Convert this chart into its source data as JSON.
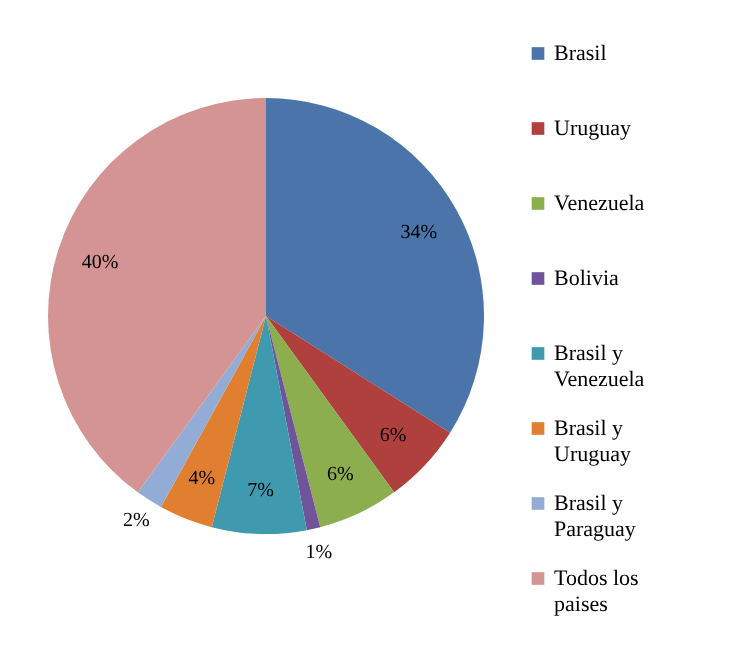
{
  "chart_data": {
    "type": "pie",
    "categories": [
      "Brasil",
      "Uruguay",
      "Venezuela",
      "Bolivia",
      "Brasil y Venezuela",
      "Brasil y Uruguay",
      "Brasil y Paraguay",
      "Todos los paises"
    ],
    "values": [
      34,
      6,
      6,
      1,
      7,
      4,
      2,
      40
    ],
    "value_labels": [
      "34%",
      "6%",
      "6%",
      "1%",
      "7%",
      "4%",
      "2%",
      "40%"
    ],
    "colors": [
      "#4a74aa",
      "#b0403e",
      "#8cae4e",
      "#70549a",
      "#3f9ab0",
      "#e07f30",
      "#93acd6",
      "#d49493"
    ],
    "legend": "right"
  }
}
